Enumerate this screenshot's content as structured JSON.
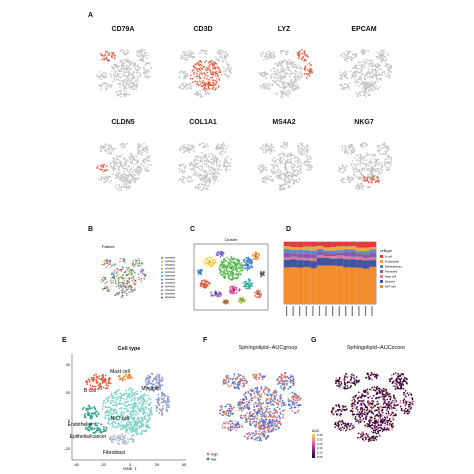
{
  "panels": {
    "a": "A",
    "b": "B",
    "c": "C",
    "d": "D",
    "e": "E",
    "f": "F",
    "g": "G"
  },
  "markers": [
    {
      "name": "CD79A",
      "hot": "bcell"
    },
    {
      "name": "CD3D",
      "hot": "main"
    },
    {
      "name": "LYZ",
      "hot": "myeloid"
    },
    {
      "name": "EPCAM",
      "hot": "none"
    },
    {
      "name": "CLDN5",
      "hot": "endo"
    },
    {
      "name": "COL1A1",
      "hot": "none"
    },
    {
      "name": "MS4A2",
      "hot": "none"
    },
    {
      "name": "NKG7",
      "hot": "nk"
    }
  ],
  "colors": {
    "grey": "#c4c4c4",
    "red": "#e2593f",
    "orange": "#f28c3b",
    "teal": "#7fd3c7",
    "tealdark": "#2e9e8f",
    "blue": "#4a6fd0",
    "navy": "#3b2c79",
    "purple": "#3a0a3a",
    "pink": "#f06aa8",
    "slate": "#8a9bc8"
  },
  "b": {
    "title": "Patient"
  },
  "c": {
    "title": "Cluster",
    "cluster_labels": [
      "1",
      "2",
      "3",
      "4",
      "5",
      "6",
      "7",
      "8",
      "9",
      "10",
      "11",
      "12",
      "13",
      "14"
    ]
  },
  "d": {
    "legend_title": "celltype",
    "celltypes": [
      "B cell",
      "Endothelial",
      "Epithelial/cancer",
      "Fibroblast",
      "Mast cell",
      "Myeloid",
      "NKT cell"
    ]
  },
  "e": {
    "title": "Cell type",
    "labels": [
      "Mast cell",
      "B cell",
      "Myeloid",
      "NKT cell",
      "Endothelial",
      "Epithelial/cancer",
      "Fibroblast"
    ],
    "xlabel": "tSNE_1",
    "ylabel": "tSNE_2",
    "xticks": [
      "-40",
      "-20",
      "0",
      "20",
      "40"
    ],
    "yticks": [
      "40",
      "20",
      "0",
      "-20"
    ]
  },
  "f": {
    "title": "Sphingolipid−AUCgroup",
    "legend": [
      "high",
      "low"
    ]
  },
  "g": {
    "title": "Sphingolipid−AUCscore",
    "legend_title": "AUC",
    "legend_ticks": [
      "0.30",
      "0.25",
      "0.20",
      "0.15",
      "0.10",
      "0.05"
    ]
  }
}
